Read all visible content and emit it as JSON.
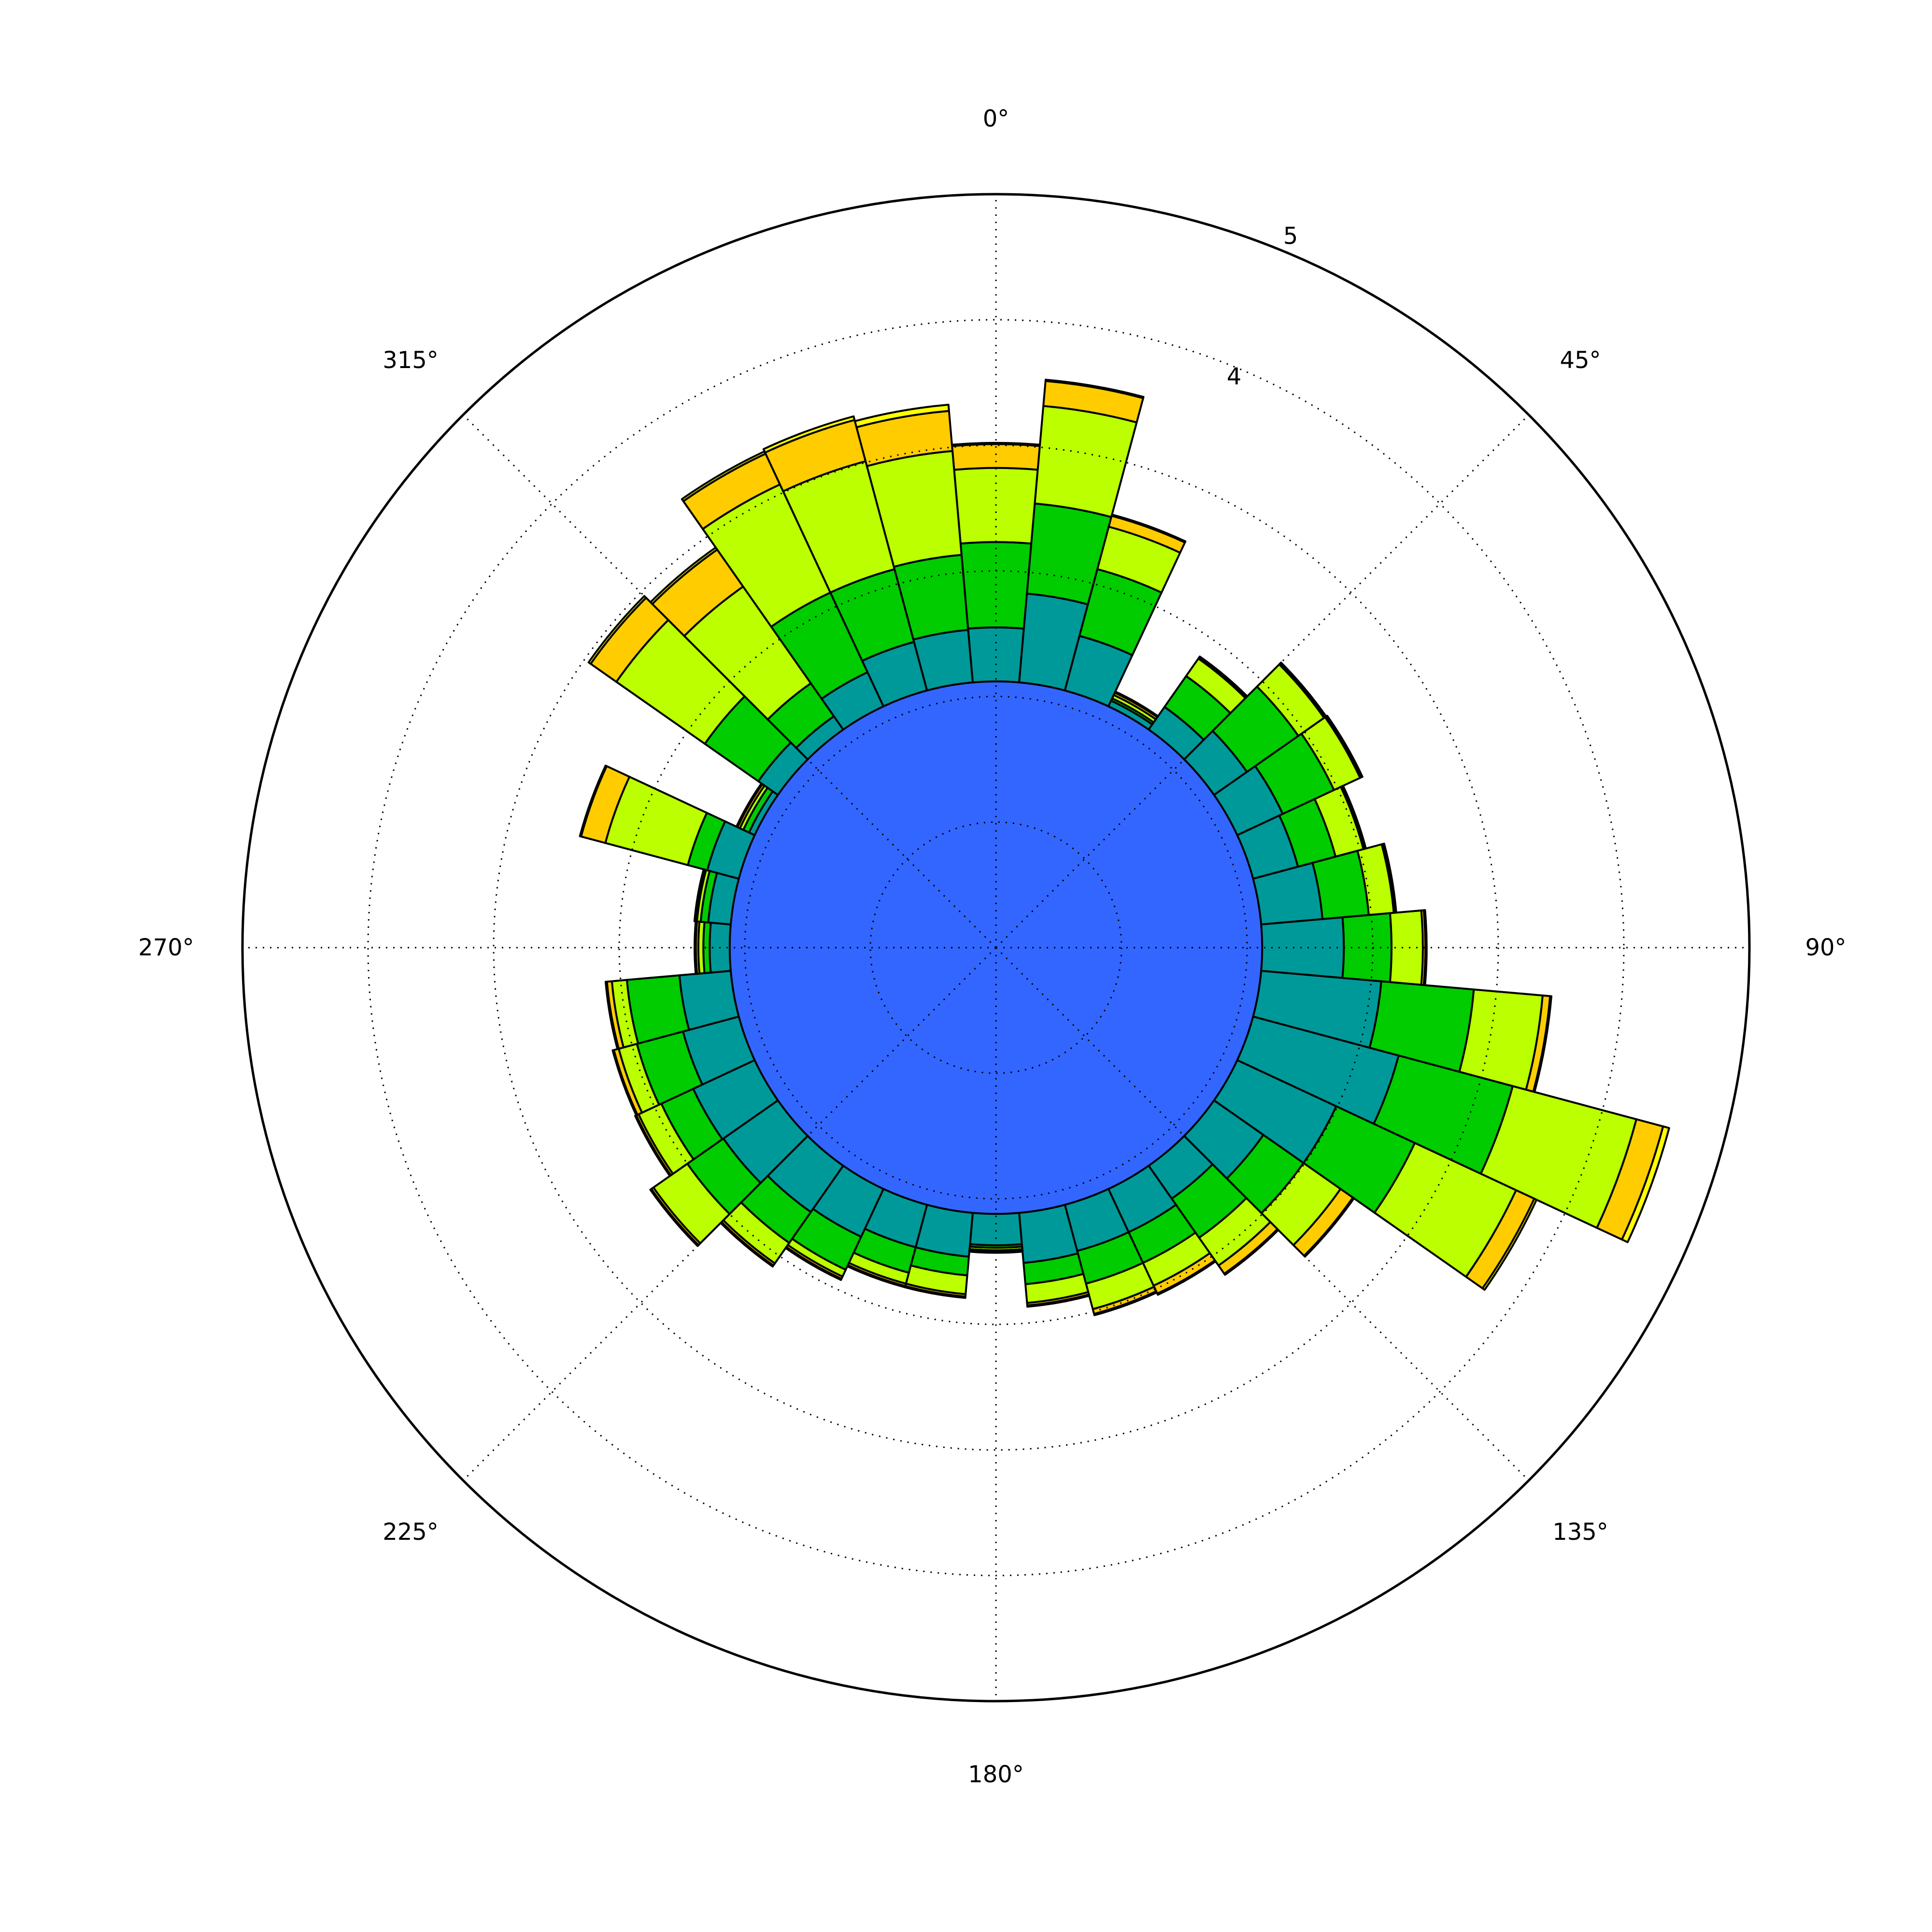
{
  "chart_data": {
    "type": "windrose",
    "title": "",
    "r_max": 6,
    "theta_tick_labels": [
      "0°",
      "45°",
      "90°",
      "135°",
      "180°",
      "225°",
      "270°",
      "315°"
    ],
    "r_tick_labels": [
      "4",
      "5"
    ],
    "r_gridlines": [
      1,
      2,
      3,
      4,
      5
    ],
    "angular_gridlines": [
      0,
      45,
      90,
      135,
      180,
      225,
      270,
      315
    ],
    "grid": true,
    "bin_count": 36,
    "bin_width_deg": 10,
    "series_colors": [
      "#3366ff",
      "#009999",
      "#00cc00",
      "#bbff00",
      "#ffcc00",
      "#ffff00"
    ],
    "directions_deg": [
      0,
      10,
      20,
      30,
      40,
      50,
      60,
      70,
      80,
      90,
      100,
      110,
      120,
      130,
      140,
      150,
      160,
      170,
      180,
      190,
      200,
      210,
      220,
      230,
      240,
      250,
      260,
      270,
      280,
      290,
      300,
      310,
      320,
      330,
      340,
      350
    ],
    "series": [
      {
        "values": [
          2.12,
          2.12,
          2.12,
          2.12,
          2.12,
          2.12,
          2.12,
          2.12,
          2.12,
          2.12,
          2.12,
          2.12,
          2.12,
          2.12,
          2.12,
          2.12,
          2.12,
          2.12,
          2.12,
          2.12,
          2.12,
          2.12,
          2.12,
          2.12,
          2.12,
          2.12,
          2.12,
          2.12,
          2.12,
          2.12,
          2.12,
          2.12,
          2.12,
          2.12,
          2.12,
          2.12
        ]
      },
      {
        "values": [
          0.43,
          0.71,
          0.45,
          0.05,
          0.22,
          0.32,
          0.4,
          0.37,
          0.49,
          0.65,
          0.96,
          1.2,
          0.87,
          0.48,
          0.32,
          0.38,
          0.38,
          0.4,
          0.25,
          0.35,
          0.35,
          0.42,
          0.45,
          0.53,
          0.54,
          0.46,
          0.41,
          0.16,
          0.18,
          0.26,
          0.05,
          0.19,
          0.13,
          0.3,
          0.4,
          0.42
        ]
      },
      {
        "values": [
          0.68,
          0.72,
          0.55,
          0.02,
          0.3,
          0.5,
          0.45,
          0.31,
          0.37,
          0.38,
          0.74,
          0.94,
          0.69,
          0.39,
          0.38,
          0.27,
          0.27,
          0.17,
          0.02,
          0.15,
          0.21,
          0.29,
          0.3,
          0.35,
          0.28,
          0.38,
          0.42,
          0.05,
          0.06,
          0.16,
          0.05,
          0.52,
          0.32,
          0.7,
          0.6,
          0.6
        ]
      },
      {
        "values": [
          0.59,
          0.78,
          0.35,
          0.03,
          0.17,
          0.25,
          0.23,
          0.23,
          0.2,
          0.25,
          0.55,
          1.02,
          0.89,
          0.36,
          0.27,
          0.2,
          0.21,
          0.15,
          0.02,
          0.15,
          0.09,
          0.06,
          0.2,
          0.33,
          0.2,
          0.15,
          0.12,
          0.04,
          0.03,
          0.68,
          0.03,
          0.86,
          0.94,
          0.95,
          0.89,
          0.83
        ]
      },
      {
        "values": [
          0.19,
          0.2,
          0.09,
          0.02,
          0.01,
          0.01,
          0.01,
          0.01,
          0.01,
          0.02,
          0.06,
          0.22,
          0.16,
          0.12,
          0.08,
          0.07,
          0.04,
          0.02,
          0.01,
          0.02,
          0.02,
          0.02,
          0.02,
          0.02,
          0.02,
          0.04,
          0.04,
          0.02,
          0.01,
          0.2,
          0.02,
          0.25,
          0.36,
          0.27,
          0.34,
          0.32
        ]
      },
      {
        "values": [
          0.01,
          0.01,
          0.01,
          0.01,
          0.01,
          0.01,
          0.01,
          0.01,
          0.01,
          0.01,
          0.01,
          0.05,
          0.02,
          0.01,
          0.01,
          0.01,
          0.01,
          0.01,
          0.01,
          0.01,
          0.01,
          0.01,
          0.01,
          0.01,
          0.01,
          0.01,
          0.01,
          0.01,
          0.01,
          0.01,
          0.01,
          0.02,
          0.02,
          0.02,
          0.03,
          0.05
        ]
      }
    ]
  }
}
